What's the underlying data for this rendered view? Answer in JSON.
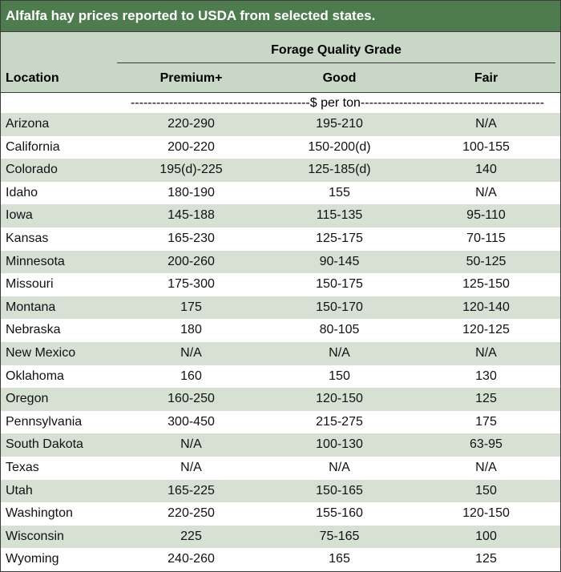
{
  "title": "Alfalfa hay prices reported to USDA from selected states.",
  "header": {
    "group_label": "Forage Quality Grade",
    "location_label": "Location",
    "columns": [
      "Premium+",
      "Good",
      "Fair"
    ]
  },
  "units_label": "------------------------------------------$ per ton-------------------------------------------",
  "rows": [
    {
      "location": "Arizona",
      "premium": "220-290",
      "good": "195-210",
      "fair": "N/A"
    },
    {
      "location": "California",
      "premium": "200-220",
      "good": "150-200(d)",
      "fair": "100-155"
    },
    {
      "location": "Colorado",
      "premium": "195(d)-225",
      "good": "125-185(d)",
      "fair": "140"
    },
    {
      "location": "Idaho",
      "premium": "180-190",
      "good": "155",
      "fair": "N/A"
    },
    {
      "location": "Iowa",
      "premium": "145-188",
      "good": "115-135",
      "fair": "95-110"
    },
    {
      "location": "Kansas",
      "premium": "165-230",
      "good": "125-175",
      "fair": "70-115"
    },
    {
      "location": "Minnesota",
      "premium": "200-260",
      "good": "90-145",
      "fair": "50-125"
    },
    {
      "location": "Missouri",
      "premium": "175-300",
      "good": "150-175",
      "fair": "125-150"
    },
    {
      "location": "Montana",
      "premium": "175",
      "good": "150-170",
      "fair": "120-140"
    },
    {
      "location": "Nebraska",
      "premium": "180",
      "good": "80-105",
      "fair": "120-125"
    },
    {
      "location": "New Mexico",
      "premium": "N/A",
      "good": "N/A",
      "fair": "N/A"
    },
    {
      "location": "Oklahoma",
      "premium": "160",
      "good": "150",
      "fair": "130"
    },
    {
      "location": "Oregon",
      "premium": "160-250",
      "good": "120-150",
      "fair": "125"
    },
    {
      "location": "Pennsylvania",
      "premium": "300-450",
      "good": "215-275",
      "fair": "175"
    },
    {
      "location": "South Dakota",
      "premium": "N/A",
      "good": "100-130",
      "fair": "63-95"
    },
    {
      "location": "Texas",
      "premium": "N/A",
      "good": "N/A",
      "fair": "N/A"
    },
    {
      "location": "Utah",
      "premium": "165-225",
      "good": "150-165",
      "fair": "150"
    },
    {
      "location": "Washington",
      "premium": "220-250",
      "good": "155-160",
      "fair": "120-150"
    },
    {
      "location": "Wisconsin",
      "premium": "225",
      "good": "75-165",
      "fair": "100"
    },
    {
      "location": "Wyoming",
      "premium": "240-260",
      "good": "165",
      "fair": "125"
    }
  ],
  "colors": {
    "title_bg": "#4e7c4f",
    "header_bg": "#c9d7c6",
    "stripe_bg": "#d6e1d4"
  }
}
